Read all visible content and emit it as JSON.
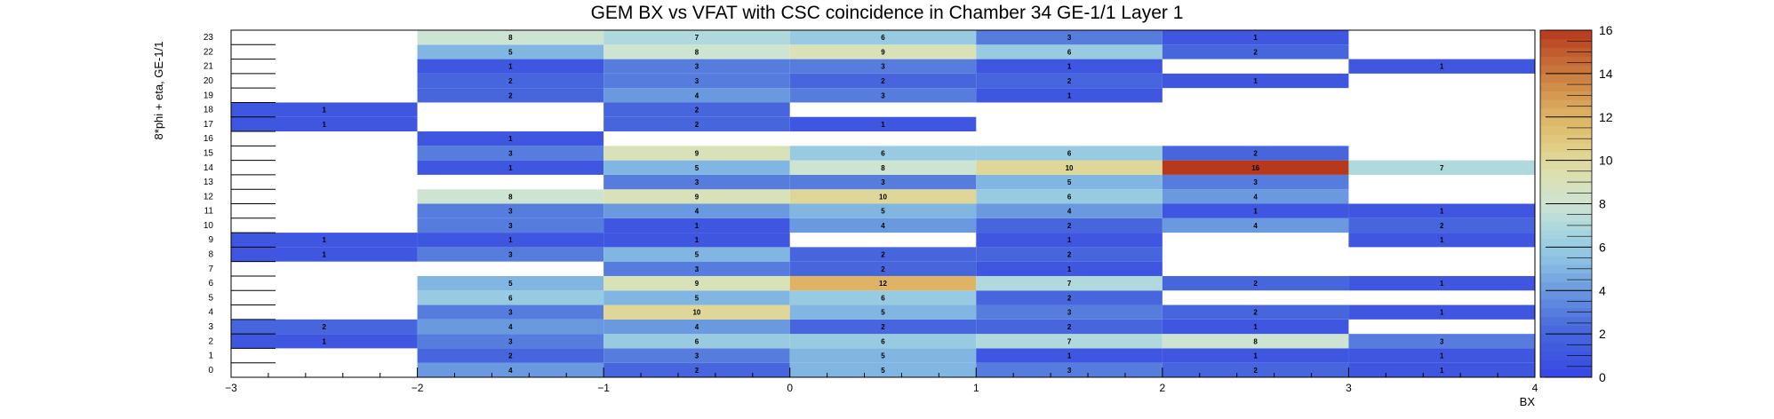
{
  "chart_data": {
    "type": "heatmap",
    "title": "GEM BX vs VFAT with CSC coincidence in Chamber 34 GE-1/1 Layer 1",
    "xlabel": "BX",
    "ylabel": "8*phi + eta, GE-1/1",
    "x_bin_edges": [
      -3,
      -2,
      -1,
      0,
      1,
      2,
      3,
      4
    ],
    "x_tick_labels": [
      "−3",
      "−2",
      "−1",
      "0",
      "1",
      "2",
      "3",
      "4"
    ],
    "y_categories": [
      0,
      1,
      2,
      3,
      4,
      5,
      6,
      7,
      8,
      9,
      10,
      11,
      12,
      13,
      14,
      15,
      16,
      17,
      18,
      19,
      20,
      21,
      22,
      23
    ],
    "xlim": [
      -3,
      4
    ],
    "ylim": [
      0,
      24
    ],
    "z_range": [
      0,
      16
    ],
    "colorbar_ticks": [
      0,
      2,
      4,
      6,
      8,
      10,
      12,
      14,
      16
    ],
    "cells": [
      [
        -2.5,
        2,
        1
      ],
      [
        -2.5,
        3,
        2
      ],
      [
        -2.5,
        8,
        1
      ],
      [
        -2.5,
        9,
        1
      ],
      [
        -2.5,
        17,
        1
      ],
      [
        -2.5,
        18,
        1
      ],
      [
        -1.5,
        0,
        4
      ],
      [
        -1.5,
        1,
        2
      ],
      [
        -1.5,
        2,
        3
      ],
      [
        -1.5,
        3,
        4
      ],
      [
        -1.5,
        4,
        3
      ],
      [
        -1.5,
        5,
        6
      ],
      [
        -1.5,
        6,
        5
      ],
      [
        -1.5,
        8,
        3
      ],
      [
        -1.5,
        9,
        1
      ],
      [
        -1.5,
        10,
        3
      ],
      [
        -1.5,
        11,
        3
      ],
      [
        -1.5,
        12,
        8
      ],
      [
        -1.5,
        14,
        1
      ],
      [
        -1.5,
        15,
        3
      ],
      [
        -1.5,
        16,
        1
      ],
      [
        -1.5,
        19,
        2
      ],
      [
        -1.5,
        20,
        2
      ],
      [
        -1.5,
        21,
        1
      ],
      [
        -1.5,
        22,
        5
      ],
      [
        -1.5,
        23,
        8
      ],
      [
        -0.5,
        0,
        2
      ],
      [
        -0.5,
        1,
        3
      ],
      [
        -0.5,
        2,
        6
      ],
      [
        -0.5,
        3,
        4
      ],
      [
        -0.5,
        4,
        10
      ],
      [
        -0.5,
        5,
        5
      ],
      [
        -0.5,
        6,
        9
      ],
      [
        -0.5,
        7,
        3
      ],
      [
        -0.5,
        8,
        5
      ],
      [
        -0.5,
        9,
        1
      ],
      [
        -0.5,
        10,
        1
      ],
      [
        -0.5,
        11,
        4
      ],
      [
        -0.5,
        12,
        9
      ],
      [
        -0.5,
        13,
        3
      ],
      [
        -0.5,
        14,
        5
      ],
      [
        -0.5,
        15,
        9
      ],
      [
        -0.5,
        17,
        2
      ],
      [
        -0.5,
        18,
        2
      ],
      [
        -0.5,
        19,
        4
      ],
      [
        -0.5,
        20,
        3
      ],
      [
        -0.5,
        21,
        3
      ],
      [
        -0.5,
        22,
        8
      ],
      [
        -0.5,
        23,
        7
      ],
      [
        0.5,
        0,
        5
      ],
      [
        0.5,
        1,
        5
      ],
      [
        0.5,
        2,
        6
      ],
      [
        0.5,
        3,
        2
      ],
      [
        0.5,
        4,
        5
      ],
      [
        0.5,
        5,
        6
      ],
      [
        0.5,
        6,
        12
      ],
      [
        0.5,
        7,
        2
      ],
      [
        0.5,
        8,
        2
      ],
      [
        0.5,
        10,
        4
      ],
      [
        0.5,
        11,
        5
      ],
      [
        0.5,
        12,
        10
      ],
      [
        0.5,
        13,
        3
      ],
      [
        0.5,
        14,
        8
      ],
      [
        0.5,
        15,
        6
      ],
      [
        0.5,
        17,
        1
      ],
      [
        0.5,
        19,
        3
      ],
      [
        0.5,
        20,
        2
      ],
      [
        0.5,
        21,
        3
      ],
      [
        0.5,
        22,
        9
      ],
      [
        0.5,
        23,
        6
      ],
      [
        1.5,
        0,
        3
      ],
      [
        1.5,
        1,
        1
      ],
      [
        1.5,
        2,
        7
      ],
      [
        1.5,
        3,
        2
      ],
      [
        1.5,
        4,
        3
      ],
      [
        1.5,
        5,
        2
      ],
      [
        1.5,
        6,
        7
      ],
      [
        1.5,
        7,
        1
      ],
      [
        1.5,
        8,
        2
      ],
      [
        1.5,
        9,
        1
      ],
      [
        1.5,
        10,
        2
      ],
      [
        1.5,
        11,
        4
      ],
      [
        1.5,
        12,
        6
      ],
      [
        1.5,
        13,
        5
      ],
      [
        1.5,
        14,
        10
      ],
      [
        1.5,
        15,
        6
      ],
      [
        1.5,
        19,
        1
      ],
      [
        1.5,
        20,
        2
      ],
      [
        1.5,
        21,
        1
      ],
      [
        1.5,
        22,
        6
      ],
      [
        1.5,
        23,
        3
      ],
      [
        2.5,
        0,
        2
      ],
      [
        2.5,
        1,
        1
      ],
      [
        2.5,
        2,
        8
      ],
      [
        2.5,
        3,
        1
      ],
      [
        2.5,
        4,
        2
      ],
      [
        2.5,
        6,
        2
      ],
      [
        2.5,
        10,
        4
      ],
      [
        2.5,
        11,
        1
      ],
      [
        2.5,
        12,
        4
      ],
      [
        2.5,
        13,
        3
      ],
      [
        2.5,
        14,
        16
      ],
      [
        2.5,
        15,
        2
      ],
      [
        2.5,
        20,
        1
      ],
      [
        2.5,
        22,
        2
      ],
      [
        2.5,
        23,
        1
      ],
      [
        3.5,
        0,
        1
      ],
      [
        3.5,
        1,
        1
      ],
      [
        3.5,
        2,
        3
      ],
      [
        3.5,
        4,
        1
      ],
      [
        3.5,
        6,
        1
      ],
      [
        3.5,
        9,
        1
      ],
      [
        3.5,
        10,
        2
      ],
      [
        3.5,
        11,
        1
      ],
      [
        3.5,
        14,
        7
      ],
      [
        3.5,
        21,
        1
      ]
    ]
  }
}
